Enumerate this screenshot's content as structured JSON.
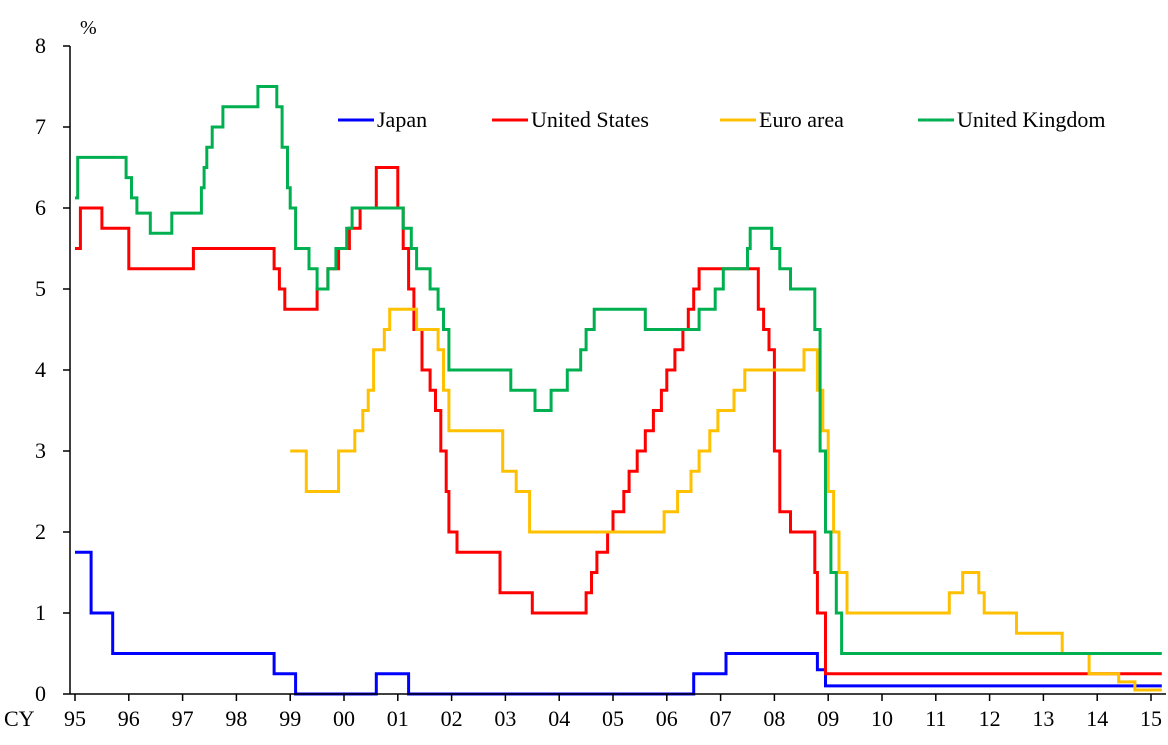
{
  "chart_data": {
    "type": "line",
    "step": true,
    "ylabel": "%",
    "x_prefix": "CY",
    "xlim": [
      1995.0,
      2015.2
    ],
    "ylim": [
      0,
      8
    ],
    "yticks": [
      0,
      1,
      2,
      3,
      4,
      5,
      6,
      7,
      8
    ],
    "xticks": [
      {
        "x": 1995,
        "label": "95"
      },
      {
        "x": 1996,
        "label": "96"
      },
      {
        "x": 1997,
        "label": "97"
      },
      {
        "x": 1998,
        "label": "98"
      },
      {
        "x": 1999,
        "label": "99"
      },
      {
        "x": 2000,
        "label": "00"
      },
      {
        "x": 2001,
        "label": "01"
      },
      {
        "x": 2002,
        "label": "02"
      },
      {
        "x": 2003,
        "label": "03"
      },
      {
        "x": 2004,
        "label": "04"
      },
      {
        "x": 2005,
        "label": "05"
      },
      {
        "x": 2006,
        "label": "06"
      },
      {
        "x": 2007,
        "label": "07"
      },
      {
        "x": 2008,
        "label": "08"
      },
      {
        "x": 2009,
        "label": "09"
      },
      {
        "x": 2010,
        "label": "10"
      },
      {
        "x": 2011,
        "label": "11"
      },
      {
        "x": 2012,
        "label": "12"
      },
      {
        "x": 2013,
        "label": "13"
      },
      {
        "x": 2014,
        "label": "14"
      },
      {
        "x": 2015,
        "label": "15"
      }
    ],
    "grid": false,
    "legend_position": "top, inside plot",
    "series": [
      {
        "name": "Japan",
        "color": "#0000ff",
        "points": [
          [
            1995.0,
            1.75
          ],
          [
            1995.3,
            1.0
          ],
          [
            1995.7,
            0.5
          ],
          [
            1998.7,
            0.25
          ],
          [
            1999.1,
            0.0
          ],
          [
            2000.6,
            0.25
          ],
          [
            2001.2,
            0.0
          ],
          [
            2006.5,
            0.25
          ],
          [
            2007.1,
            0.5
          ],
          [
            2008.8,
            0.3
          ],
          [
            2008.95,
            0.1
          ],
          [
            2015.2,
            0.1
          ]
        ]
      },
      {
        "name": "United States",
        "color": "#ff0000",
        "points": [
          [
            1995.0,
            5.5
          ],
          [
            1995.1,
            6.0
          ],
          [
            1995.5,
            5.75
          ],
          [
            1996.0,
            5.25
          ],
          [
            1997.2,
            5.5
          ],
          [
            1998.7,
            5.25
          ],
          [
            1998.8,
            5.0
          ],
          [
            1998.9,
            4.75
          ],
          [
            1999.5,
            5.0
          ],
          [
            1999.7,
            5.25
          ],
          [
            1999.9,
            5.5
          ],
          [
            2000.1,
            5.75
          ],
          [
            2000.3,
            6.0
          ],
          [
            2000.6,
            6.5
          ],
          [
            2001.0,
            6.0
          ],
          [
            2001.1,
            5.5
          ],
          [
            2001.2,
            5.0
          ],
          [
            2001.3,
            4.5
          ],
          [
            2001.45,
            4.0
          ],
          [
            2001.6,
            3.75
          ],
          [
            2001.7,
            3.5
          ],
          [
            2001.8,
            3.0
          ],
          [
            2001.9,
            2.5
          ],
          [
            2001.95,
            2.0
          ],
          [
            2002.1,
            1.75
          ],
          [
            2002.9,
            1.25
          ],
          [
            2003.5,
            1.0
          ],
          [
            2004.5,
            1.25
          ],
          [
            2004.6,
            1.5
          ],
          [
            2004.7,
            1.75
          ],
          [
            2004.9,
            2.0
          ],
          [
            2005.0,
            2.25
          ],
          [
            2005.2,
            2.5
          ],
          [
            2005.3,
            2.75
          ],
          [
            2005.45,
            3.0
          ],
          [
            2005.6,
            3.25
          ],
          [
            2005.75,
            3.5
          ],
          [
            2005.9,
            3.75
          ],
          [
            2006.0,
            4.0
          ],
          [
            2006.15,
            4.25
          ],
          [
            2006.3,
            4.5
          ],
          [
            2006.4,
            4.75
          ],
          [
            2006.5,
            5.0
          ],
          [
            2006.6,
            5.25
          ],
          [
            2007.7,
            4.75
          ],
          [
            2007.8,
            4.5
          ],
          [
            2007.9,
            4.25
          ],
          [
            2008.0,
            3.0
          ],
          [
            2008.1,
            2.25
          ],
          [
            2008.3,
            2.0
          ],
          [
            2008.75,
            1.5
          ],
          [
            2008.8,
            1.0
          ],
          [
            2008.95,
            0.25
          ],
          [
            2015.2,
            0.25
          ]
        ]
      },
      {
        "name": "Euro area",
        "color": "#ffc000",
        "points": [
          [
            1999.0,
            3.0
          ],
          [
            1999.3,
            2.5
          ],
          [
            1999.9,
            3.0
          ],
          [
            2000.2,
            3.25
          ],
          [
            2000.35,
            3.5
          ],
          [
            2000.45,
            3.75
          ],
          [
            2000.55,
            4.25
          ],
          [
            2000.75,
            4.5
          ],
          [
            2000.85,
            4.75
          ],
          [
            2001.35,
            4.5
          ],
          [
            2001.75,
            4.25
          ],
          [
            2001.85,
            3.75
          ],
          [
            2001.95,
            3.25
          ],
          [
            2002.95,
            2.75
          ],
          [
            2003.2,
            2.5
          ],
          [
            2003.45,
            2.0
          ],
          [
            2005.95,
            2.25
          ],
          [
            2006.2,
            2.5
          ],
          [
            2006.45,
            2.75
          ],
          [
            2006.6,
            3.0
          ],
          [
            2006.8,
            3.25
          ],
          [
            2006.95,
            3.5
          ],
          [
            2007.25,
            3.75
          ],
          [
            2007.45,
            4.0
          ],
          [
            2008.55,
            4.25
          ],
          [
            2008.8,
            3.75
          ],
          [
            2008.9,
            3.25
          ],
          [
            2009.0,
            2.5
          ],
          [
            2009.1,
            2.0
          ],
          [
            2009.2,
            1.5
          ],
          [
            2009.35,
            1.0
          ],
          [
            2011.25,
            1.25
          ],
          [
            2011.5,
            1.5
          ],
          [
            2011.8,
            1.25
          ],
          [
            2011.9,
            1.0
          ],
          [
            2012.5,
            0.75
          ],
          [
            2013.35,
            0.5
          ],
          [
            2013.85,
            0.25
          ],
          [
            2014.4,
            0.15
          ],
          [
            2014.7,
            0.05
          ],
          [
            2015.2,
            0.05
          ]
        ]
      },
      {
        "name": "United Kingdom",
        "color": "#00b050",
        "points": [
          [
            1995.0,
            6.125
          ],
          [
            1995.05,
            6.625
          ],
          [
            1995.95,
            6.375
          ],
          [
            1996.05,
            6.125
          ],
          [
            1996.15,
            5.9375
          ],
          [
            1996.4,
            5.6875
          ],
          [
            1996.8,
            5.9375
          ],
          [
            1997.35,
            6.25
          ],
          [
            1997.4,
            6.5
          ],
          [
            1997.45,
            6.75
          ],
          [
            1997.55,
            7.0
          ],
          [
            1997.75,
            7.25
          ],
          [
            1998.4,
            7.5
          ],
          [
            1998.75,
            7.25
          ],
          [
            1998.85,
            6.75
          ],
          [
            1998.95,
            6.25
          ],
          [
            1999.0,
            6.0
          ],
          [
            1999.1,
            5.5
          ],
          [
            1999.35,
            5.25
          ],
          [
            1999.5,
            5.0
          ],
          [
            1999.7,
            5.25
          ],
          [
            1999.85,
            5.5
          ],
          [
            2000.05,
            5.75
          ],
          [
            2000.15,
            6.0
          ],
          [
            2001.1,
            5.75
          ],
          [
            2001.25,
            5.5
          ],
          [
            2001.35,
            5.25
          ],
          [
            2001.6,
            5.0
          ],
          [
            2001.75,
            4.75
          ],
          [
            2001.85,
            4.5
          ],
          [
            2001.95,
            4.0
          ],
          [
            2003.1,
            3.75
          ],
          [
            2003.55,
            3.5
          ],
          [
            2003.85,
            3.75
          ],
          [
            2004.15,
            4.0
          ],
          [
            2004.4,
            4.25
          ],
          [
            2004.5,
            4.5
          ],
          [
            2004.65,
            4.75
          ],
          [
            2005.6,
            4.5
          ],
          [
            2006.6,
            4.75
          ],
          [
            2006.9,
            5.0
          ],
          [
            2007.05,
            5.25
          ],
          [
            2007.5,
            5.5
          ],
          [
            2007.55,
            5.75
          ],
          [
            2007.95,
            5.5
          ],
          [
            2008.1,
            5.25
          ],
          [
            2008.3,
            5.0
          ],
          [
            2008.75,
            4.5
          ],
          [
            2008.85,
            3.0
          ],
          [
            2008.95,
            2.0
          ],
          [
            2009.05,
            1.5
          ],
          [
            2009.15,
            1.0
          ],
          [
            2009.25,
            0.5
          ],
          [
            2015.2,
            0.5
          ]
        ]
      }
    ]
  }
}
